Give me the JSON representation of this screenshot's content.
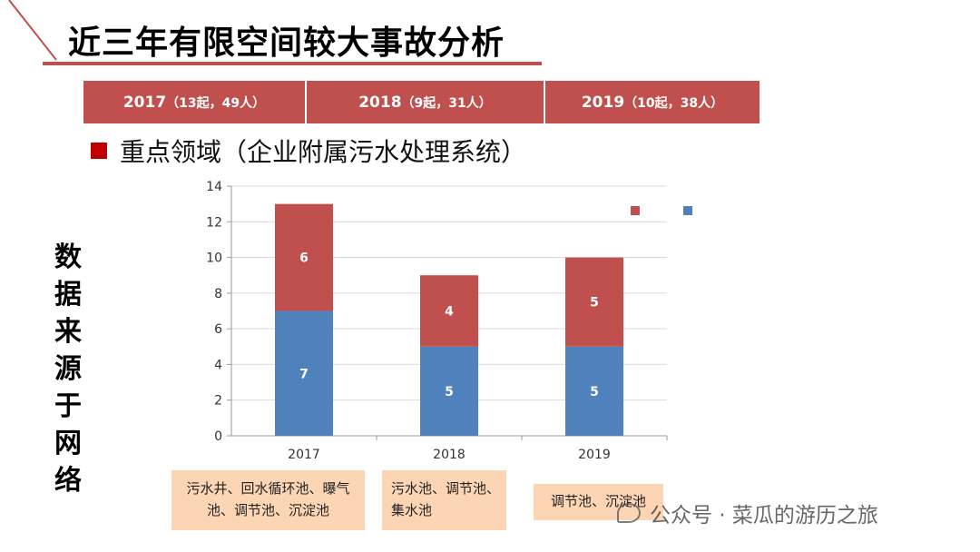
{
  "title": "近三年有限空间较大事故分析",
  "year_bar": [
    {
      "year": "2017",
      "detail": "（13起，49人）"
    },
    {
      "year": "2018",
      "detail": "（9起，31人）"
    },
    {
      "year": "2019",
      "detail": "（10起，38人）"
    }
  ],
  "focus_label": "重点领域（企业附属污水处理系统）",
  "side_text": [
    "数",
    "据",
    "来",
    "源",
    "于",
    "网",
    "络"
  ],
  "notes": [
    {
      "lines": [
        "污水井、回水循环池、曝气",
        "池、调节池、沉淀池"
      ]
    },
    {
      "lines": [
        "污水池、调节池、",
        "集水池"
      ]
    },
    {
      "lines": [
        "调节池、沉淀池"
      ]
    }
  ],
  "watermark": "公众号 · 菜瓜的游历之旅",
  "colors": {
    "accent": "#c0504d",
    "blue": "#4f81bd",
    "note_bg": "#fcd5b4"
  },
  "chart_data": {
    "type": "bar",
    "stacked": true,
    "categories": [
      "2017",
      "2018",
      "2019"
    ],
    "series": [
      {
        "name": "",
        "color": "#4f81bd",
        "values": [
          7,
          5,
          5
        ]
      },
      {
        "name": "",
        "color": "#c0504d",
        "values": [
          6,
          4,
          5
        ]
      }
    ],
    "ylim": [
      0,
      14
    ],
    "yticks": [
      0,
      2,
      4,
      6,
      8,
      10,
      12,
      14
    ],
    "grid": true,
    "legend": "top-right",
    "title": "",
    "xlabel": "",
    "ylabel": ""
  }
}
